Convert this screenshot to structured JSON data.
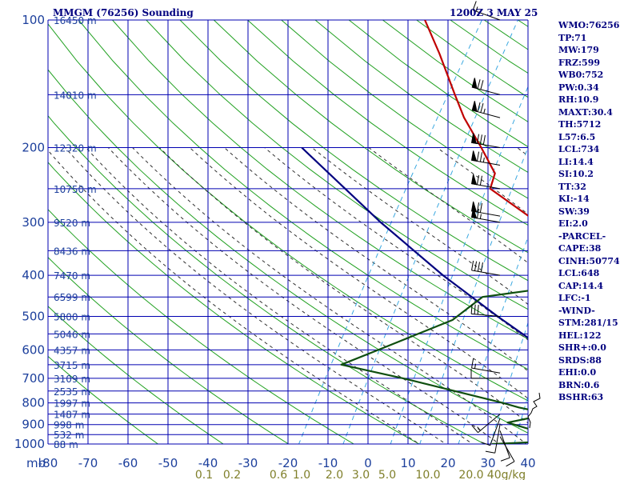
{
  "header": {
    "station": "MMGM (76256) Sounding",
    "time": "1200Z  3 MAY 25"
  },
  "indices": [
    "WMO:76256",
    "TP:71",
    "MW:179",
    "FRZ:599",
    "WB0:752",
    "PW:0.34",
    "RH:10.9",
    "MAXT:30.4",
    "TH:5712",
    "L57:6.5",
    "LCL:734",
    "LI:14.4",
    "SI:10.2",
    "TT:32",
    "KI:-14",
    "SW:39",
    "EI:2.0",
    "-PARCEL-",
    "CAPE:38",
    "CINH:50774",
    "LCL:648",
    "CAP:14.4",
    "LFC:-1",
    "-WIND-",
    "STM:281/15",
    "HEL:122",
    "SHR+:0.0",
    "SRDS:88",
    "EHI:0.0",
    "BRN:0.6",
    "BSHR:63"
  ],
  "chart_data": {
    "type": "line",
    "title": "MMGM (76256) Sounding",
    "y_axis_unit": "mb",
    "mixing_ratio_unit": "g/kg",
    "pressure_levels": [
      100,
      200,
      300,
      400,
      500,
      600,
      700,
      800,
      900,
      1000
    ],
    "temperature_ticks": [
      -80,
      -70,
      -60,
      -50,
      -40,
      -30,
      -20,
      -10,
      0,
      10,
      20,
      30,
      40
    ],
    "temperature_tick_labels": [
      "-80",
      "-70",
      "-60",
      "-50",
      "-40",
      "-30",
      "-20",
      "-10",
      "0",
      "10",
      "20",
      "30",
      "40"
    ],
    "mixing_ratio_labels": [
      "0.1",
      "0.2",
      "0.6",
      "1.0",
      "2.0",
      "3.0",
      "5.0",
      "10.0",
      "20.0",
      "40g/kg"
    ],
    "height_labels": [
      {
        "p": 100,
        "label": "16450 m"
      },
      {
        "p": 150,
        "label": "14010 m"
      },
      {
        "p": 200,
        "label": "12320 m"
      },
      {
        "p": 250,
        "label": "10750 m"
      },
      {
        "p": 300,
        "label": "9520 m"
      },
      {
        "p": 350,
        "label": "8436 m"
      },
      {
        "p": 400,
        "label": "7470 m"
      },
      {
        "p": 450,
        "label": "6599 m"
      },
      {
        "p": 500,
        "label": "5800 m"
      },
      {
        "p": 550,
        "label": "5046 m"
      },
      {
        "p": 600,
        "label": "4357 m"
      },
      {
        "p": 650,
        "label": "3715 m"
      },
      {
        "p": 700,
        "label": "3109 m"
      },
      {
        "p": 750,
        "label": "2535 m"
      },
      {
        "p": 800,
        "label": "1997 m"
      },
      {
        "p": 850,
        "label": "1487 m"
      },
      {
        "p": 900,
        "label": "998 m"
      },
      {
        "p": 950,
        "label": "532 m"
      },
      {
        "p": 1000,
        "label": "88 m"
      }
    ],
    "series": [
      {
        "name": "",
        "color": "#c00000",
        "points": [
          [
            1000,
            14.4
          ],
          [
            1000,
            19.2
          ],
          [
            990,
            20.4
          ],
          [
            960,
            20.4
          ],
          [
            925,
            18
          ],
          [
            880,
            10.6
          ],
          [
            850,
            8.4
          ],
          [
            800,
            7.0
          ],
          [
            700,
            4.0
          ],
          [
            600,
            -1.0
          ],
          [
            500,
            -8.5
          ],
          [
            400,
            -18.5
          ],
          [
            390,
            -17.5
          ],
          [
            350,
            -22
          ],
          [
            300,
            -30
          ],
          [
            250,
            -41
          ],
          [
            230,
            -42
          ],
          [
            200,
            -47
          ],
          [
            170,
            -53
          ],
          [
            150,
            -57
          ],
          [
            120,
            -64
          ],
          [
            100,
            -70
          ]
        ]
      },
      {
        "name": "",
        "color": "#00007f",
        "points": [
          [
            1000,
            23
          ],
          [
            950,
            17.6
          ],
          [
            900,
            13.2
          ],
          [
            850,
            8.4
          ],
          [
            800,
            3.7
          ],
          [
            700,
            -5.5
          ],
          [
            650,
            -9.8
          ],
          [
            600,
            -14.4
          ],
          [
            500,
            -25.5
          ],
          [
            400,
            -38.5
          ],
          [
            300,
            -54
          ],
          [
            200,
            -74.5
          ]
        ]
      },
      {
        "name": "",
        "color": "#0f4f0f",
        "points": [
          [
            1000,
            -12
          ],
          [
            990,
            -6
          ],
          [
            930,
            -7
          ],
          [
            890,
            -12
          ],
          [
            860,
            -8
          ],
          [
            850,
            -6.5
          ],
          [
            820,
            -12
          ],
          [
            800,
            -15
          ],
          [
            700,
            -33
          ],
          [
            650,
            -44
          ],
          [
            600,
            -40
          ],
          [
            510,
            -32
          ],
          [
            450,
            -30
          ],
          [
            415,
            -15
          ],
          [
            400,
            -10
          ],
          [
            380,
            -5
          ],
          [
            360,
            -2
          ],
          [
            350,
            3
          ],
          [
            340,
            -1
          ],
          [
            320,
            3
          ],
          [
            310,
            6
          ],
          [
            280,
            6
          ],
          [
            260,
            12
          ],
          [
            250,
            17
          ],
          [
            220,
            34.5
          ],
          [
            170,
            47
          ],
          [
            150,
            45
          ]
        ]
      }
    ],
    "wind_barbs": [
      {
        "p": 100,
        "dir": 290,
        "spd": 15
      },
      {
        "p": 150,
        "dir": 285,
        "spd": 70
      },
      {
        "p": 170,
        "dir": 285,
        "spd": 75
      },
      {
        "p": 200,
        "dir": 280,
        "spd": 80
      },
      {
        "p": 220,
        "dir": 280,
        "spd": 75
      },
      {
        "p": 250,
        "dir": 280,
        "spd": 70
      },
      {
        "p": 290,
        "dir": 280,
        "spd": 70
      },
      {
        "p": 300,
        "dir": 280,
        "spd": 65
      },
      {
        "p": 400,
        "dir": 280,
        "spd": 40
      },
      {
        "p": 500,
        "dir": 275,
        "spd": 30
      },
      {
        "p": 680,
        "dir": 280,
        "spd": 15
      },
      {
        "p": 700,
        "dir": 270,
        "spd": 10
      },
      {
        "p": 850,
        "dir": 230,
        "spd": 15
      },
      {
        "p": 870,
        "dir": 200,
        "spd": 10
      },
      {
        "p": 900,
        "dir": 190,
        "spd": 10
      },
      {
        "p": 930,
        "dir": 160,
        "spd": 10
      },
      {
        "p": 960,
        "dir": 150,
        "spd": 10
      }
    ],
    "hodograph": [
      [
        0,
        15
      ],
      [
        1,
        8
      ],
      [
        -2,
        1
      ],
      [
        2,
        -4
      ],
      [
        4,
        -9
      ],
      [
        9,
        -12
      ],
      [
        5,
        -18
      ],
      [
        13,
        -22
      ],
      [
        12,
        -29
      ]
    ],
    "grid": true
  }
}
